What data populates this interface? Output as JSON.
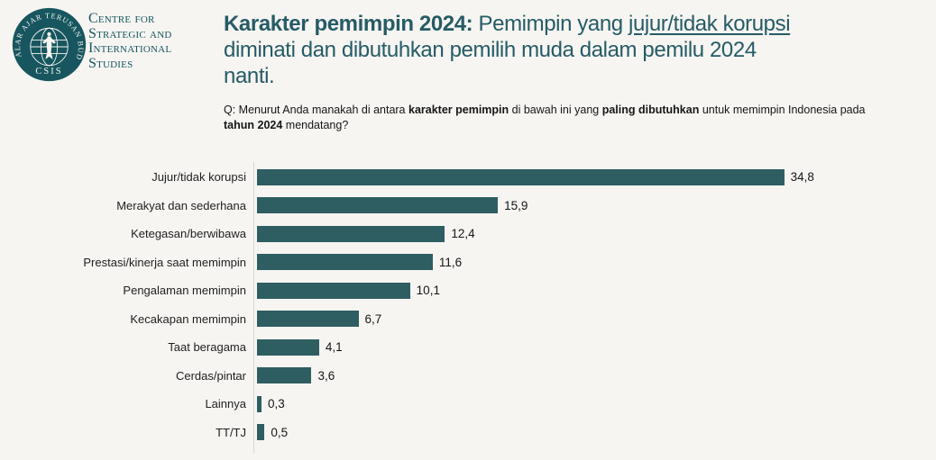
{
  "logo": {
    "seal_ring_text": "NALAR AJAR TERUSAN BUDI",
    "seal_acronym": "CSIS",
    "org_name_lines": [
      "Centre for",
      "Strategic and",
      "International",
      "Studies"
    ]
  },
  "header": {
    "title": {
      "bold": "Karakter pemimpin 2024:",
      "after_bold": " Pemimpin yang ",
      "underlined": "jujur/tidak korupsi",
      "line2": "diminati dan dibutuhkan pemilih muda dalam pemilu 2024",
      "line3": "nanti."
    },
    "question": {
      "prefix": "Q: Menurut Anda manakah di antara ",
      "bold1": "karakter pemimpin",
      "mid1": " di bawah ini yang ",
      "bold2": "paling dibutuhkan",
      "mid2": " untuk memimpin Indonesia pada",
      "bold3": "tahun 2024",
      "suffix": " mendatang?"
    }
  },
  "colors": {
    "background": "#F6F5F2",
    "bar": "#2E5E62",
    "title_teal": "#265B66",
    "logo_teal": "#17565F",
    "axis_gray": "#D6D6D6",
    "text": "#1F1F1F"
  },
  "chart_data": {
    "type": "bar",
    "orientation": "horizontal",
    "title": "Karakter pemimpin 2024",
    "categories": [
      "Jujur/tidak korupsi",
      "Merakyat dan sederhana",
      "Ketegasan/berwibawa",
      "Prestasi/kinerja saat memimpin",
      "Pengalaman memimpin",
      "Kecakapan memimpin",
      "Taat beragama",
      "Cerdas/pintar",
      "Lainnya",
      "TT/TJ"
    ],
    "values": [
      34.8,
      15.9,
      12.4,
      11.6,
      10.1,
      6.7,
      4.1,
      3.6,
      0.3,
      0.5
    ],
    "value_labels": [
      "34,8",
      "15,9",
      "12,4",
      "11,6",
      "10,1",
      "6,7",
      "4,1",
      "3,6",
      "0,3",
      "0,5"
    ],
    "xlim": [
      0,
      40
    ],
    "grid": false,
    "legend": null,
    "value_label_position": "end-of-bar",
    "bar_color": "#2E5E62"
  }
}
